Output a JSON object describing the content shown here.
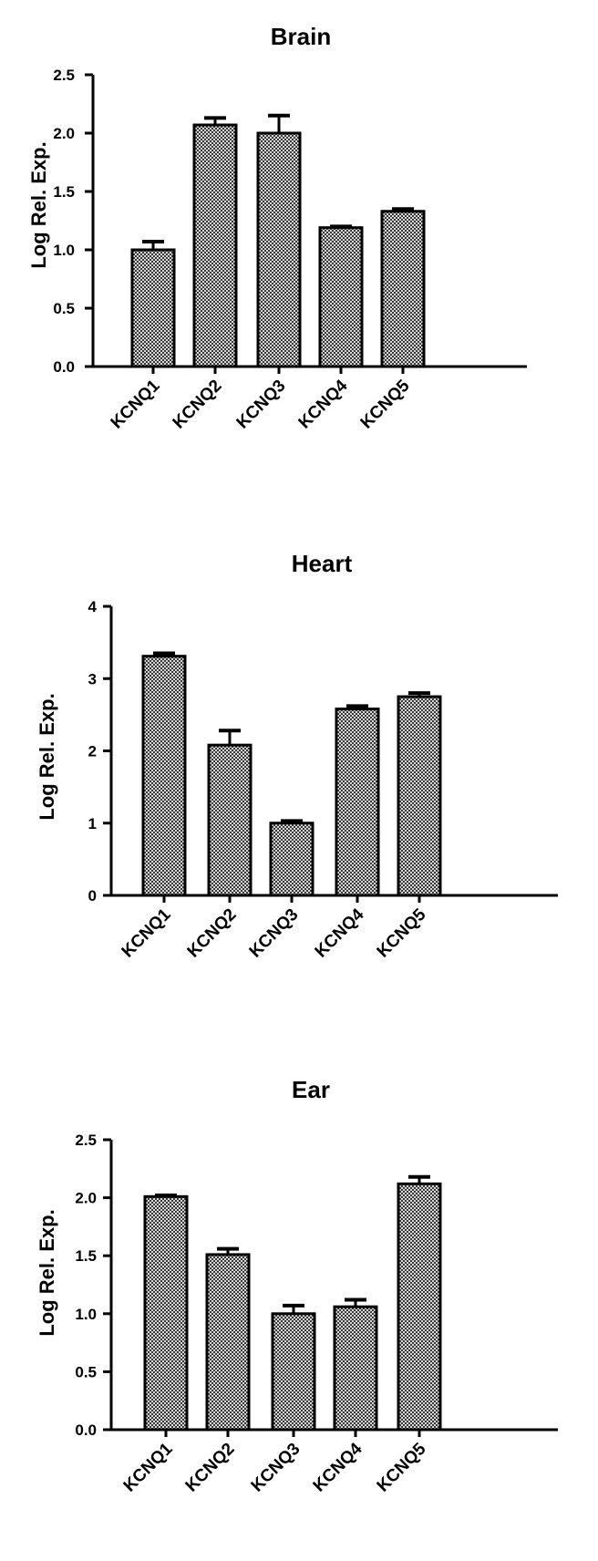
{
  "chart_data": [
    {
      "type": "bar",
      "title": "Brain",
      "ylabel": "Log Rel. Exp.",
      "xlabel": "",
      "categories": [
        "KCNQ1",
        "KCNQ2",
        "KCNQ3",
        "KCNQ4",
        "KCNQ5"
      ],
      "values": [
        1.0,
        2.07,
        2.0,
        1.19,
        1.33
      ],
      "errors": [
        0.07,
        0.06,
        0.15,
        0.01,
        0.02
      ],
      "ylim": [
        0,
        2.5
      ],
      "yticks": [
        "0.0",
        "0.5",
        "1.0",
        "1.5",
        "2.0",
        "2.5"
      ],
      "grid": false
    },
    {
      "type": "bar",
      "title": "Heart",
      "ylabel": "Log Rel. Exp.",
      "xlabel": "",
      "categories": [
        "KCNQ1",
        "KCNQ2",
        "KCNQ3",
        "KCNQ4",
        "KCNQ5"
      ],
      "values": [
        3.31,
        2.08,
        1.0,
        2.58,
        2.75
      ],
      "errors": [
        0.04,
        0.2,
        0.03,
        0.04,
        0.05
      ],
      "ylim": [
        0,
        4
      ],
      "yticks": [
        "0",
        "1",
        "2",
        "3",
        "4"
      ],
      "grid": false
    },
    {
      "type": "bar",
      "title": "Ear",
      "ylabel": "Log Rel. Exp.",
      "xlabel": "",
      "categories": [
        "KCNQ1",
        "KCNQ2",
        "KCNQ3",
        "KCNQ4",
        "KCNQ5"
      ],
      "values": [
        2.01,
        1.51,
        1.0,
        1.06,
        2.12
      ],
      "errors": [
        0.01,
        0.05,
        0.07,
        0.06,
        0.06
      ],
      "ylim": [
        0,
        2.5
      ],
      "yticks": [
        "0.0",
        "0.5",
        "1.0",
        "1.5",
        "2.0",
        "2.5"
      ],
      "grid": false
    }
  ]
}
